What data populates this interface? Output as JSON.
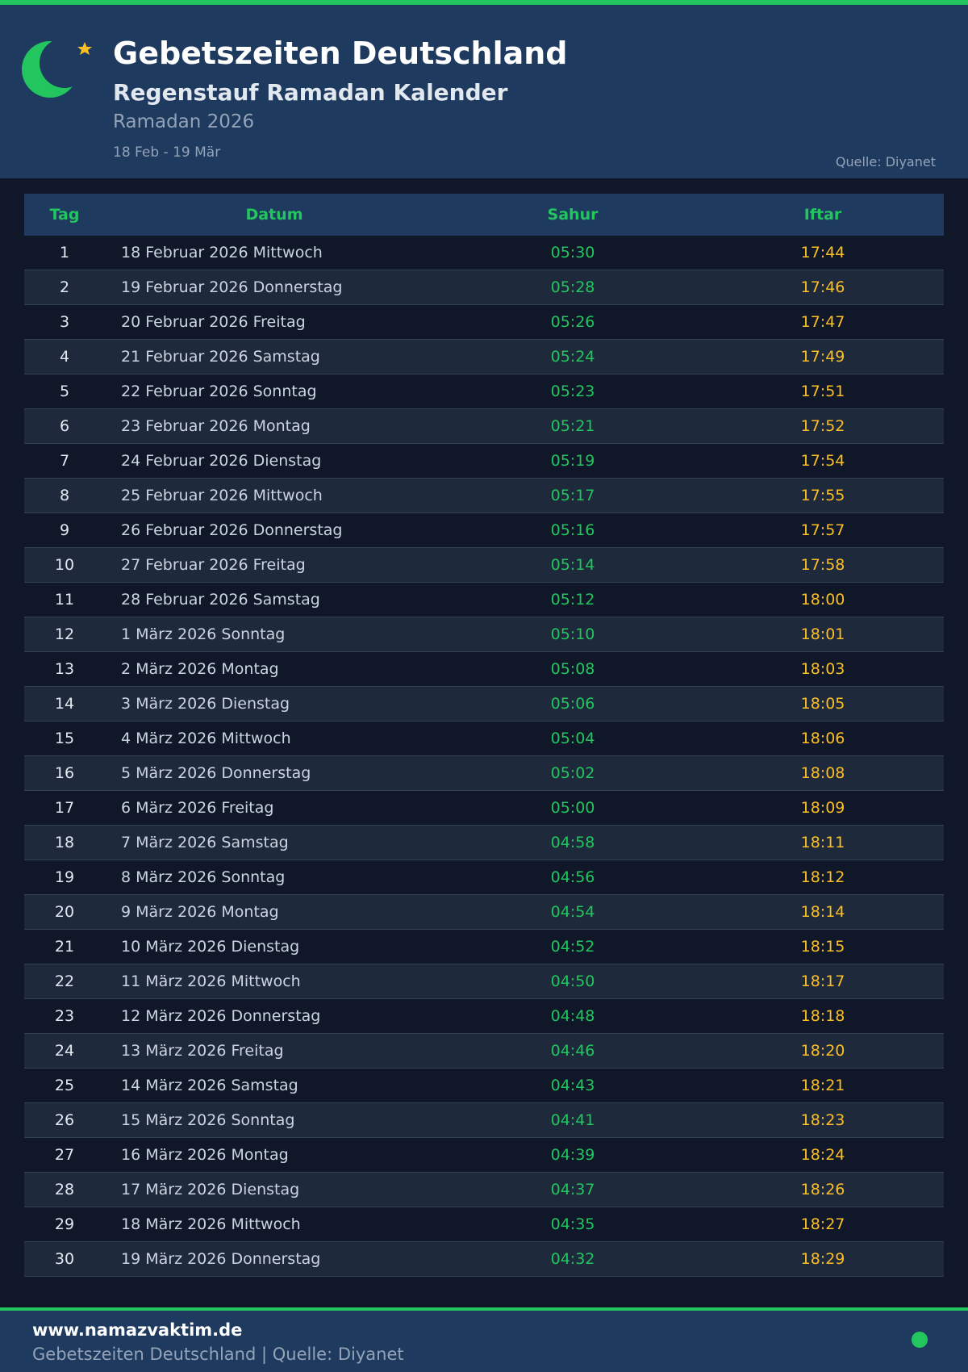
{
  "header": {
    "title": "Gebetszeiten Deutschland",
    "subtitle": "Regenstauf Ramadan Kalender",
    "period": "Ramadan 2026",
    "range": "18 Feb - 19 Mär",
    "source": "Quelle: Diyanet"
  },
  "table": {
    "columns": [
      "Tag",
      "Datum",
      "Sahur",
      "Iftar"
    ],
    "rows": [
      [
        1,
        "18 Februar 2026 Mittwoch",
        "05:30",
        "17:44"
      ],
      [
        2,
        "19 Februar 2026 Donnerstag",
        "05:28",
        "17:46"
      ],
      [
        3,
        "20 Februar 2026 Freitag",
        "05:26",
        "17:47"
      ],
      [
        4,
        "21 Februar 2026 Samstag",
        "05:24",
        "17:49"
      ],
      [
        5,
        "22 Februar 2026 Sonntag",
        "05:23",
        "17:51"
      ],
      [
        6,
        "23 Februar 2026 Montag",
        "05:21",
        "17:52"
      ],
      [
        7,
        "24 Februar 2026 Dienstag",
        "05:19",
        "17:54"
      ],
      [
        8,
        "25 Februar 2026 Mittwoch",
        "05:17",
        "17:55"
      ],
      [
        9,
        "26 Februar 2026 Donnerstag",
        "05:16",
        "17:57"
      ],
      [
        10,
        "27 Februar 2026 Freitag",
        "05:14",
        "17:58"
      ],
      [
        11,
        "28 Februar 2026 Samstag",
        "05:12",
        "18:00"
      ],
      [
        12,
        "1 März 2026 Sonntag",
        "05:10",
        "18:01"
      ],
      [
        13,
        "2 März 2026 Montag",
        "05:08",
        "18:03"
      ],
      [
        14,
        "3 März 2026 Dienstag",
        "05:06",
        "18:05"
      ],
      [
        15,
        "4 März 2026 Mittwoch",
        "05:04",
        "18:06"
      ],
      [
        16,
        "5 März 2026 Donnerstag",
        "05:02",
        "18:08"
      ],
      [
        17,
        "6 März 2026 Freitag",
        "05:00",
        "18:09"
      ],
      [
        18,
        "7 März 2026 Samstag",
        "04:58",
        "18:11"
      ],
      [
        19,
        "8 März 2026 Sonntag",
        "04:56",
        "18:12"
      ],
      [
        20,
        "9 März 2026 Montag",
        "04:54",
        "18:14"
      ],
      [
        21,
        "10 März 2026 Dienstag",
        "04:52",
        "18:15"
      ],
      [
        22,
        "11 März 2026 Mittwoch",
        "04:50",
        "18:17"
      ],
      [
        23,
        "12 März 2026 Donnerstag",
        "04:48",
        "18:18"
      ],
      [
        24,
        "13 März 2026 Freitag",
        "04:46",
        "18:20"
      ],
      [
        25,
        "14 März 2026 Samstag",
        "04:43",
        "18:21"
      ],
      [
        26,
        "15 März 2026 Sonntag",
        "04:41",
        "18:23"
      ],
      [
        27,
        "16 März 2026 Montag",
        "04:39",
        "18:24"
      ],
      [
        28,
        "17 März 2026 Dienstag",
        "04:37",
        "18:26"
      ],
      [
        29,
        "18 März 2026 Mittwoch",
        "04:35",
        "18:27"
      ],
      [
        30,
        "19 März 2026 Donnerstag",
        "04:32",
        "18:29"
      ]
    ]
  },
  "footer": {
    "site": "www.namazvaktim.de",
    "text": "Gebetszeiten Deutschland | Quelle: Diyanet"
  }
}
